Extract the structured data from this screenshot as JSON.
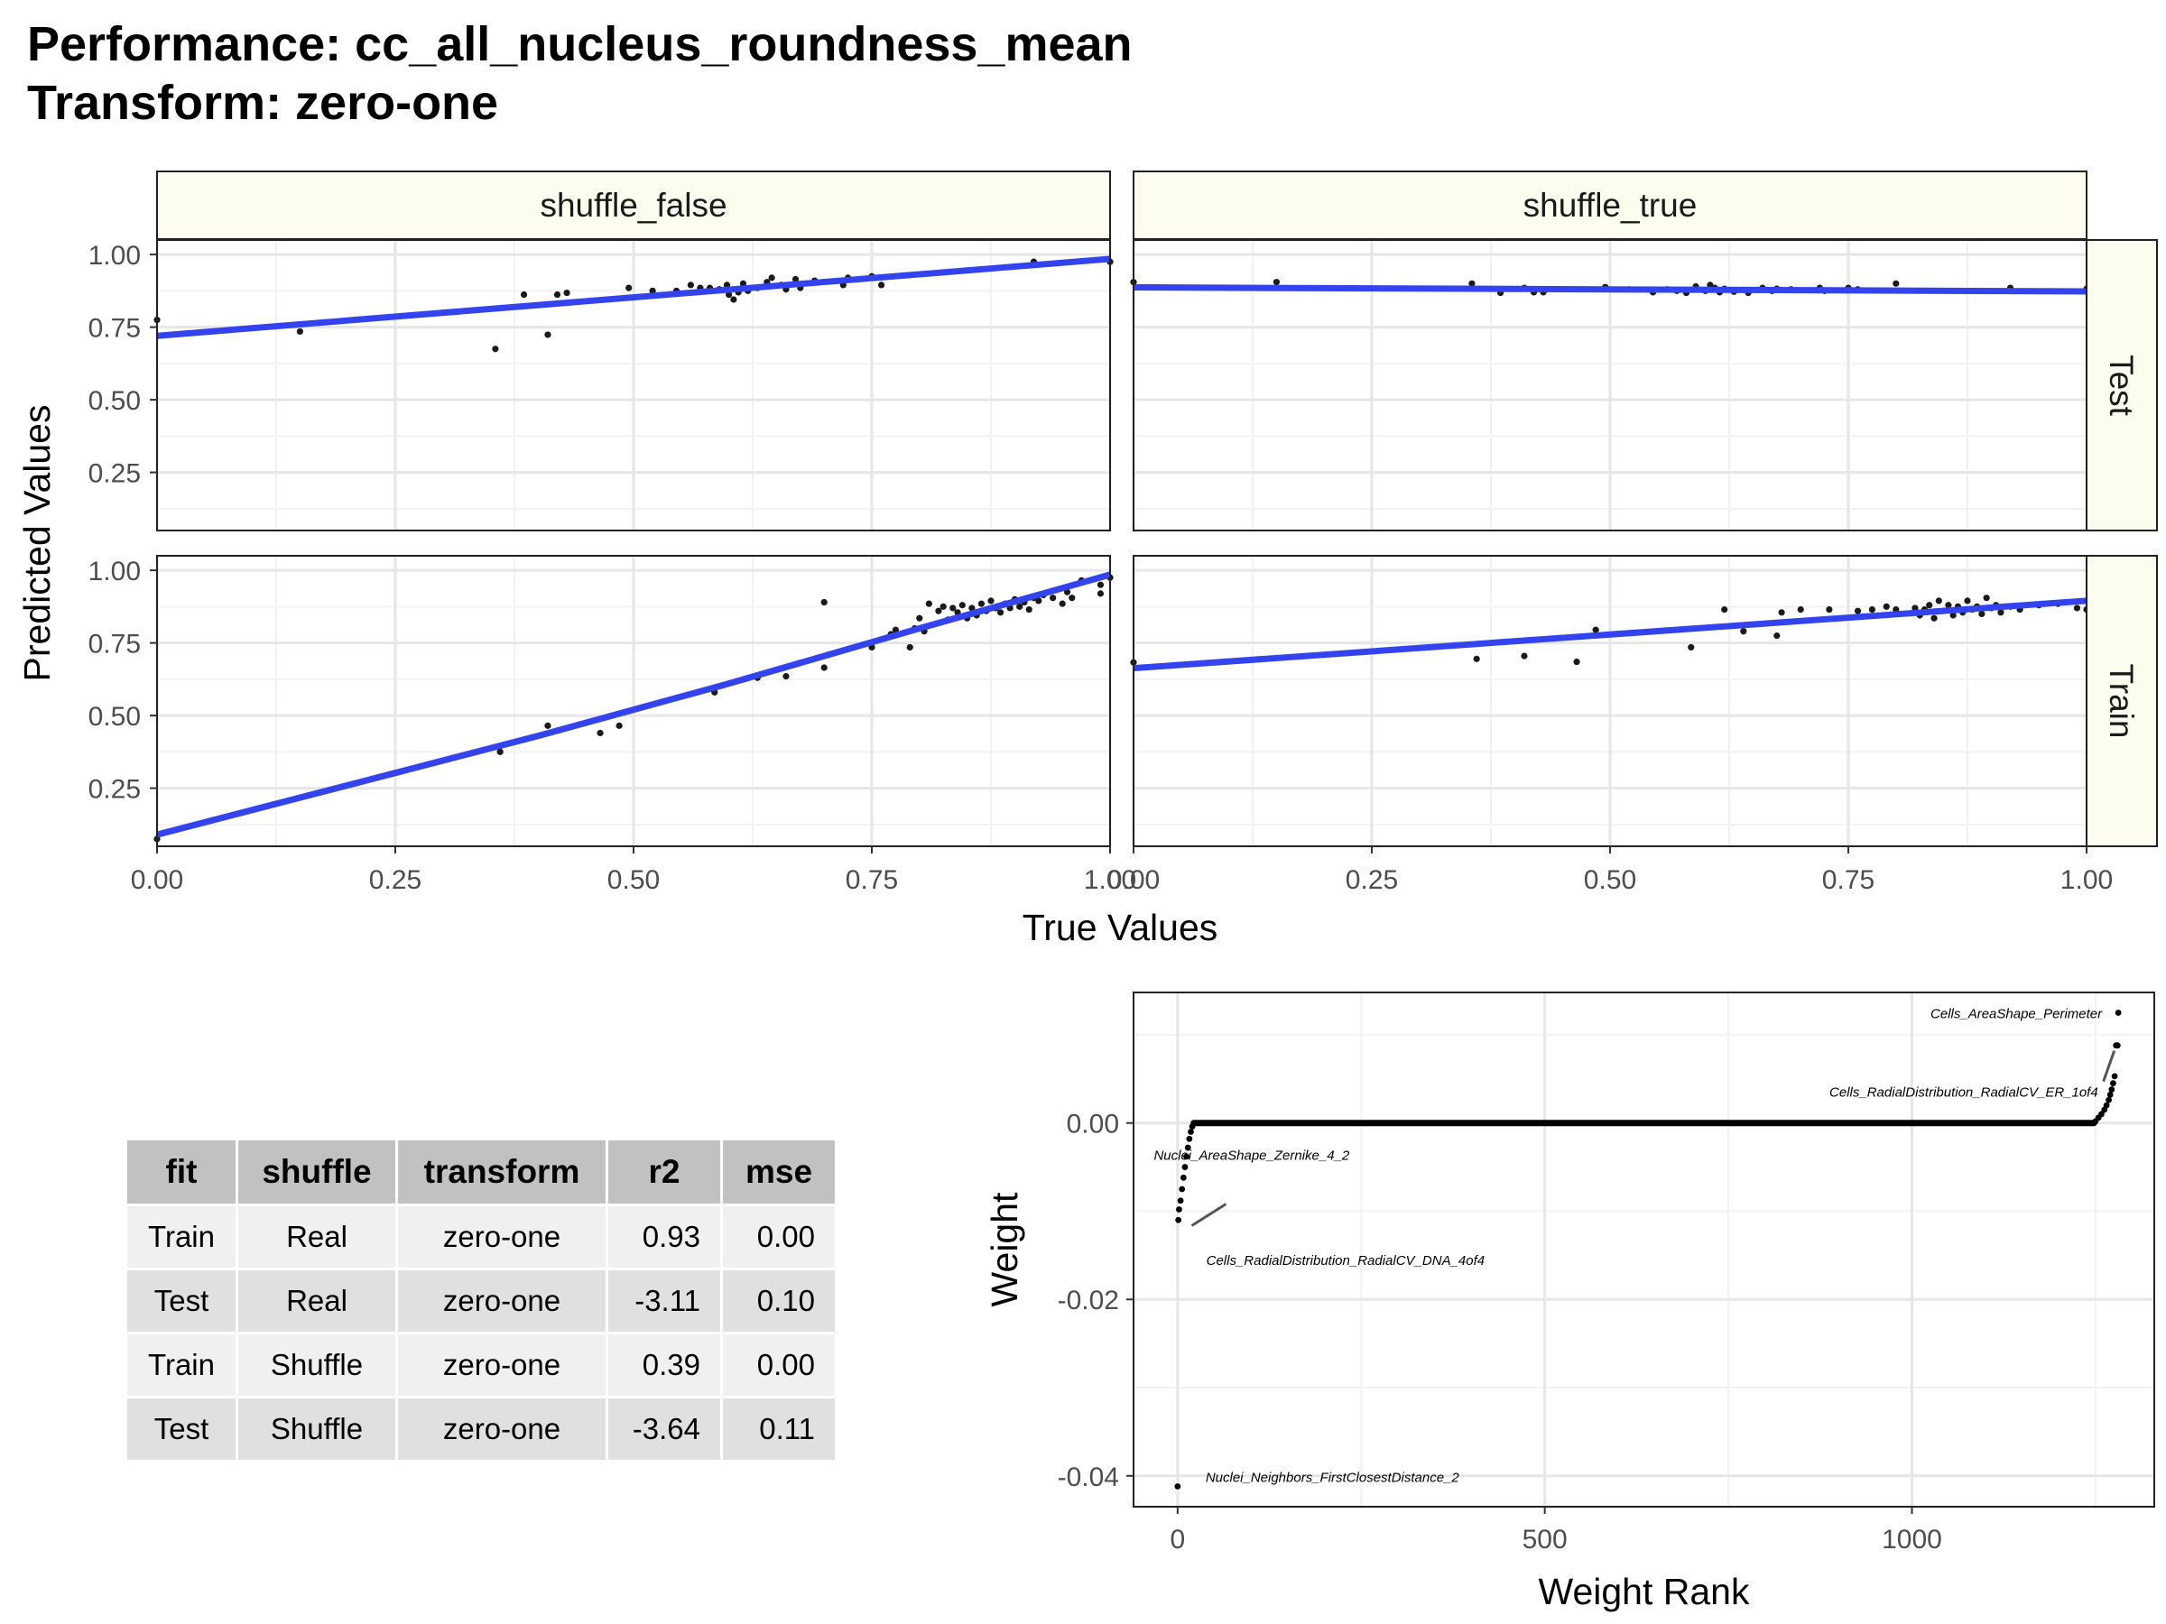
{
  "title": {
    "line1": "Performance: cc_all_nucleus_roundness_mean",
    "line2": "Transform: zero-one"
  },
  "colors": {
    "fit_line": "#3344ee",
    "ci_band": "#c0c0c0",
    "point": "#1a1a1a",
    "strip_fill": "#fcfdef",
    "panel_border": "#222222",
    "grid_major": "#e6e6e6",
    "grid_minor": "#f2f2f2",
    "table_header": "#c1c1c1",
    "table_row_odd": "#f0f0f0",
    "table_row_even": "#e0e0e0"
  },
  "chart_data": [
    {
      "type": "scatter",
      "xlabel": "True Values",
      "ylabel": "Predicted Values",
      "facet_cols": [
        "shuffle_false",
        "shuffle_true"
      ],
      "facet_rows": [
        "Test",
        "Train"
      ],
      "xlim": [
        0,
        1
      ],
      "ylim": [
        0.05,
        1.05
      ],
      "xticks": [
        "0.00",
        "0.25",
        "0.50",
        "0.75",
        "1.00"
      ],
      "yticks": [
        "0.25",
        "0.50",
        "0.75",
        "1.00"
      ],
      "grid": true,
      "panels": [
        {
          "col": "shuffle_false",
          "row": "Test",
          "fit": [
            [
              0,
              0.72
            ],
            [
              1,
              0.985
            ]
          ],
          "points": [
            [
              0,
              0.775
            ],
            [
              0.15,
              0.735
            ],
            [
              0.355,
              0.675
            ],
            [
              0.385,
              0.862
            ],
            [
              0.41,
              0.724
            ],
            [
              0.42,
              0.862
            ],
            [
              0.43,
              0.868
            ],
            [
              0.495,
              0.885
            ],
            [
              0.52,
              0.875
            ],
            [
              0.545,
              0.875
            ],
            [
              0.56,
              0.895
            ],
            [
              0.57,
              0.885
            ],
            [
              0.58,
              0.885
            ],
            [
              0.59,
              0.88
            ],
            [
              0.598,
              0.895
            ],
            [
              0.6,
              0.862
            ],
            [
              0.605,
              0.845
            ],
            [
              0.61,
              0.87
            ],
            [
              0.615,
              0.9
            ],
            [
              0.62,
              0.875
            ],
            [
              0.63,
              0.885
            ],
            [
              0.64,
              0.905
            ],
            [
              0.645,
              0.92
            ],
            [
              0.655,
              0.895
            ],
            [
              0.66,
              0.88
            ],
            [
              0.67,
              0.915
            ],
            [
              0.675,
              0.885
            ],
            [
              0.69,
              0.91
            ],
            [
              0.72,
              0.895
            ],
            [
              0.725,
              0.92
            ],
            [
              0.75,
              0.925
            ],
            [
              0.76,
              0.895
            ],
            [
              0.92,
              0.975
            ],
            [
              1,
              0.975
            ]
          ]
        },
        {
          "col": "shuffle_true",
          "row": "Test",
          "fit": [
            [
              0,
              0.887
            ],
            [
              1,
              0.873
            ]
          ],
          "points": [
            [
              0,
              0.905
            ],
            [
              0.15,
              0.905
            ],
            [
              0.355,
              0.9
            ],
            [
              0.385,
              0.868
            ],
            [
              0.41,
              0.885
            ],
            [
              0.42,
              0.87
            ],
            [
              0.43,
              0.87
            ],
            [
              0.495,
              0.888
            ],
            [
              0.52,
              0.88
            ],
            [
              0.545,
              0.87
            ],
            [
              0.56,
              0.88
            ],
            [
              0.57,
              0.875
            ],
            [
              0.58,
              0.868
            ],
            [
              0.59,
              0.89
            ],
            [
              0.6,
              0.875
            ],
            [
              0.605,
              0.895
            ],
            [
              0.61,
              0.885
            ],
            [
              0.615,
              0.87
            ],
            [
              0.62,
              0.882
            ],
            [
              0.63,
              0.872
            ],
            [
              0.64,
              0.878
            ],
            [
              0.645,
              0.868
            ],
            [
              0.655,
              0.878
            ],
            [
              0.66,
              0.885
            ],
            [
              0.67,
              0.875
            ],
            [
              0.675,
              0.882
            ],
            [
              0.69,
              0.88
            ],
            [
              0.72,
              0.885
            ],
            [
              0.725,
              0.875
            ],
            [
              0.75,
              0.885
            ],
            [
              0.76,
              0.88
            ],
            [
              0.8,
              0.9
            ],
            [
              0.92,
              0.885
            ],
            [
              1,
              0.882
            ]
          ]
        },
        {
          "col": "shuffle_false",
          "row": "Train",
          "fit": [
            [
              0,
              0.09
            ],
            [
              0.4,
              0.43
            ],
            [
              0.6,
              0.61
            ],
            [
              0.8,
              0.8
            ],
            [
              1,
              0.985
            ]
          ],
          "band": true,
          "points": [
            [
              0,
              0.075
            ],
            [
              0.36,
              0.375
            ],
            [
              0.41,
              0.465
            ],
            [
              0.465,
              0.44
            ],
            [
              0.485,
              0.465
            ],
            [
              0.585,
              0.58
            ],
            [
              0.63,
              0.63
            ],
            [
              0.66,
              0.635
            ],
            [
              0.7,
              0.665
            ],
            [
              0.705,
              0.71
            ],
            [
              0.7,
              0.89
            ],
            [
              0.75,
              0.735
            ],
            [
              0.77,
              0.78
            ],
            [
              0.775,
              0.795
            ],
            [
              0.79,
              0.735
            ],
            [
              0.795,
              0.8
            ],
            [
              0.8,
              0.835
            ],
            [
              0.805,
              0.79
            ],
            [
              0.81,
              0.885
            ],
            [
              0.82,
              0.86
            ],
            [
              0.825,
              0.875
            ],
            [
              0.83,
              0.83
            ],
            [
              0.835,
              0.87
            ],
            [
              0.84,
              0.855
            ],
            [
              0.845,
              0.88
            ],
            [
              0.85,
              0.835
            ],
            [
              0.855,
              0.87
            ],
            [
              0.86,
              0.845
            ],
            [
              0.865,
              0.885
            ],
            [
              0.87,
              0.86
            ],
            [
              0.875,
              0.895
            ],
            [
              0.88,
              0.87
            ],
            [
              0.885,
              0.855
            ],
            [
              0.89,
              0.885
            ],
            [
              0.895,
              0.87
            ],
            [
              0.9,
              0.9
            ],
            [
              0.905,
              0.875
            ],
            [
              0.91,
              0.89
            ],
            [
              0.915,
              0.865
            ],
            [
              0.92,
              0.905
            ],
            [
              0.925,
              0.895
            ],
            [
              0.93,
              0.915
            ],
            [
              0.94,
              0.905
            ],
            [
              0.95,
              0.885
            ],
            [
              0.955,
              0.925
            ],
            [
              0.96,
              0.905
            ],
            [
              0.97,
              0.965
            ],
            [
              0.99,
              0.92
            ],
            [
              0.99,
              0.95
            ],
            [
              1,
              0.975
            ]
          ]
        },
        {
          "col": "shuffle_true",
          "row": "Train",
          "fit": [
            [
              0,
              0.663
            ],
            [
              1,
              0.895
            ]
          ],
          "points": [
            [
              0,
              0.683
            ],
            [
              0.36,
              0.695
            ],
            [
              0.41,
              0.705
            ],
            [
              0.465,
              0.685
            ],
            [
              0.485,
              0.795
            ],
            [
              0.585,
              0.735
            ],
            [
              0.62,
              0.865
            ],
            [
              0.64,
              0.79
            ],
            [
              0.675,
              0.775
            ],
            [
              0.68,
              0.855
            ],
            [
              0.7,
              0.865
            ],
            [
              0.73,
              0.865
            ],
            [
              0.76,
              0.86
            ],
            [
              0.775,
              0.865
            ],
            [
              0.79,
              0.875
            ],
            [
              0.8,
              0.865
            ],
            [
              0.82,
              0.87
            ],
            [
              0.825,
              0.845
            ],
            [
              0.83,
              0.865
            ],
            [
              0.835,
              0.88
            ],
            [
              0.84,
              0.835
            ],
            [
              0.845,
              0.895
            ],
            [
              0.85,
              0.86
            ],
            [
              0.855,
              0.88
            ],
            [
              0.86,
              0.845
            ],
            [
              0.865,
              0.875
            ],
            [
              0.87,
              0.855
            ],
            [
              0.875,
              0.895
            ],
            [
              0.88,
              0.865
            ],
            [
              0.885,
              0.875
            ],
            [
              0.89,
              0.85
            ],
            [
              0.895,
              0.905
            ],
            [
              0.9,
              0.87
            ],
            [
              0.905,
              0.88
            ],
            [
              0.91,
              0.855
            ],
            [
              0.92,
              0.875
            ],
            [
              0.93,
              0.865
            ],
            [
              0.95,
              0.88
            ],
            [
              0.97,
              0.885
            ],
            [
              0.99,
              0.87
            ],
            [
              1,
              0.865
            ]
          ]
        }
      ]
    },
    {
      "type": "table",
      "columns": [
        "fit",
        "shuffle",
        "transform",
        "r2",
        "mse"
      ],
      "rows": [
        [
          "Train",
          "Real",
          "zero-one",
          "0.93",
          "0.00"
        ],
        [
          "Test",
          "Real",
          "zero-one",
          "-3.11",
          "0.10"
        ],
        [
          "Train",
          "Shuffle",
          "zero-one",
          "0.39",
          "0.00"
        ],
        [
          "Test",
          "Shuffle",
          "zero-one",
          "-3.64",
          "0.11"
        ]
      ]
    },
    {
      "type": "scatter",
      "xlabel": "Weight Rank",
      "ylabel": "Weight",
      "xlim": [
        -60,
        1330
      ],
      "ylim": [
        -0.0435,
        0.0148
      ],
      "xticks": [
        0,
        500,
        1000
      ],
      "yticks": [
        "0.00",
        "-0.02",
        "-0.04"
      ],
      "ytick_values": [
        0,
        -0.02,
        -0.04
      ],
      "n": 1280,
      "flat_range": [
        22,
        1248
      ],
      "grid": true,
      "low_points": [
        [
          0,
          -0.0412
        ],
        [
          1,
          -0.011
        ],
        [
          2,
          -0.0098
        ],
        [
          4,
          -0.0088
        ],
        [
          6,
          -0.0075
        ],
        [
          8,
          -0.0062
        ],
        [
          10,
          -0.005
        ],
        [
          12,
          -0.0038
        ],
        [
          14,
          -0.0028
        ],
        [
          16,
          -0.0018
        ],
        [
          18,
          -0.001
        ],
        [
          20,
          -0.0004
        ]
      ],
      "high_points": [
        [
          1250,
          0.0002
        ],
        [
          1254,
          0.0006
        ],
        [
          1258,
          0.001
        ],
        [
          1262,
          0.0015
        ],
        [
          1265,
          0.002
        ],
        [
          1268,
          0.0026
        ],
        [
          1270,
          0.0032
        ],
        [
          1272,
          0.0038
        ],
        [
          1274,
          0.0045
        ],
        [
          1276,
          0.0053
        ],
        [
          1278,
          0.0088
        ],
        [
          1280,
          0.0088
        ],
        [
          1281,
          0.0125
        ]
      ],
      "labels": [
        {
          "text": "Cells_AreaShape_Perimeter",
          "x": 1281,
          "y": 0.0125
        },
        {
          "text": "Cells_RadialDistribution_RadialCV_ER_1of4",
          "x": 1278,
          "y": 0.0088
        },
        {
          "text": "Nuclei_AreaShape_Zernike_4_2",
          "x": 2,
          "y": -0.0098
        },
        {
          "text": "Cells_RadialDistribution_RadialCV_DNA_4of4",
          "x": 1,
          "y": -0.011
        },
        {
          "text": "Nuclei_Neighbors_FirstClosestDistance_2",
          "x": 0,
          "y": -0.0412
        }
      ]
    }
  ]
}
